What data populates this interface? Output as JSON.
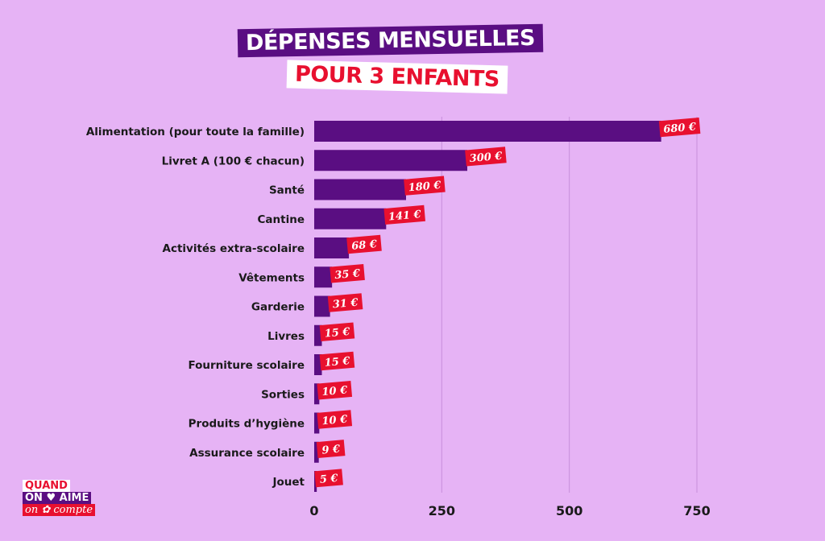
{
  "chart_data": {
    "type": "bar",
    "orientation": "horizontal",
    "title": "DÉPENSES MENSUELLES",
    "subtitle": "POUR 3 ENFANTS",
    "categories": [
      "Alimentation (pour toute la famille)",
      "Livret A (100 € chacun)",
      "Santé",
      "Cantine",
      "Activités extra-scolaire",
      "Vêtements",
      "Garderie",
      "Livres",
      "Fourniture scolaire",
      "Sorties",
      "Produits d’hygiène",
      "Assurance scolaire",
      "Jouet"
    ],
    "values": [
      680,
      300,
      180,
      141,
      68,
      35,
      31,
      15,
      15,
      10,
      10,
      9,
      5
    ],
    "data_labels": [
      "680 €",
      "300 €",
      "180 €",
      "141 €",
      "68 €",
      "35 €",
      "31 €",
      "15 €",
      "15 €",
      "10 €",
      "10 €",
      "9 €",
      "5 €"
    ],
    "xlim": [
      0,
      750
    ],
    "xticks": [
      "0",
      "250",
      "500",
      "750"
    ],
    "grid": true,
    "colors": {
      "bar": "#5a0e82",
      "label_bg": "#e8102f",
      "background": "#e6b3f5",
      "grid": "#c88fdc"
    }
  },
  "logo": {
    "line1": "QUAND",
    "line2": "ON ♥ AIME",
    "line3": "on ✿ compte"
  }
}
